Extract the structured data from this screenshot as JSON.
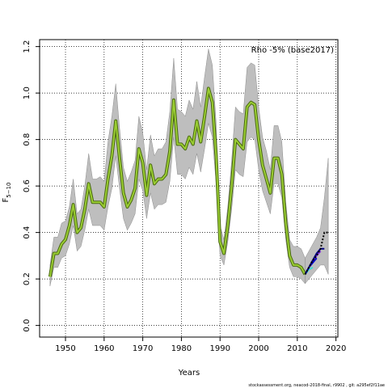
{
  "chart_data": {
    "type": "line",
    "title": "",
    "legend_text": "Rho -5% (base2017)",
    "legend_position": "top-right",
    "xlabel": "Years",
    "ylabel_main": "F",
    "ylabel_sub": "5−10",
    "xlim": [
      1943.3,
      2020.5
    ],
    "ylim": [
      -0.05,
      1.23
    ],
    "xticks": [
      1950,
      1960,
      1970,
      1980,
      1990,
      2000,
      2010,
      2020
    ],
    "yticks": [
      0.0,
      0.2,
      0.4,
      0.6,
      0.8,
      1.0,
      1.2
    ],
    "ytick_labels": [
      "0.0",
      "0.2",
      "0.4",
      "0.6",
      "0.8",
      "1.0",
      "1.2"
    ],
    "grid": true,
    "colors": {
      "band": "#bebebe",
      "band_edge": "#8c8c8c",
      "main_outer": "#4a6a12",
      "main_inner": "#9acd32",
      "retro_1": "#000080",
      "retro_2": "#8a2be2",
      "retro_3": "#0000cd",
      "retro_4": "#40e0d0",
      "retro_5": "#000000"
    },
    "x": [
      1946,
      1947,
      1948,
      1949,
      1950,
      1951,
      1952,
      1953,
      1954,
      1955,
      1956,
      1957,
      1958,
      1959,
      1960,
      1961,
      1962,
      1963,
      1964,
      1965,
      1966,
      1967,
      1968,
      1969,
      1970,
      1971,
      1972,
      1973,
      1974,
      1975,
      1976,
      1977,
      1978,
      1979,
      1980,
      1981,
      1982,
      1983,
      1984,
      1985,
      1986,
      1987,
      1988,
      1989,
      1990,
      1991,
      1992,
      1993,
      1994,
      1995,
      1996,
      1997,
      1998,
      1999,
      2000,
      2001,
      2002,
      2003,
      2004,
      2005,
      2006,
      2007,
      2008,
      2009,
      2010,
      2011,
      2012
    ],
    "series": [
      {
        "values": [
          0.21,
          0.31,
          0.31,
          0.35,
          0.37,
          0.43,
          0.52,
          0.4,
          0.42,
          0.5,
          0.61,
          0.53,
          0.53,
          0.53,
          0.51,
          0.63,
          0.73,
          0.88,
          0.72,
          0.57,
          0.51,
          0.54,
          0.59,
          0.76,
          0.7,
          0.56,
          0.69,
          0.61,
          0.63,
          0.63,
          0.65,
          0.75,
          0.97,
          0.78,
          0.78,
          0.76,
          0.81,
          0.78,
          0.88,
          0.79,
          0.9,
          1.02,
          0.96,
          0.73,
          0.36,
          0.31,
          0.43,
          0.6,
          0.8,
          0.78,
          0.76,
          0.94,
          0.96,
          0.95,
          0.8,
          0.69,
          0.63,
          0.57,
          0.72,
          0.72,
          0.65,
          0.44,
          0.3,
          0.26,
          0.26,
          0.25,
          0.22
        ],
        "upper": [
          0.26,
          0.38,
          0.38,
          0.44,
          0.45,
          0.51,
          0.63,
          0.48,
          0.5,
          0.6,
          0.74,
          0.63,
          0.63,
          0.64,
          0.62,
          0.79,
          0.9,
          1.04,
          0.85,
          0.68,
          0.62,
          0.66,
          0.71,
          0.9,
          0.83,
          0.67,
          0.82,
          0.73,
          0.76,
          0.76,
          0.79,
          0.92,
          1.15,
          0.93,
          0.92,
          0.9,
          0.97,
          0.93,
          1.05,
          0.94,
          1.07,
          1.19,
          1.12,
          0.87,
          0.43,
          0.37,
          0.51,
          0.71,
          0.94,
          0.92,
          0.91,
          1.11,
          1.13,
          1.12,
          0.94,
          0.81,
          0.75,
          0.67,
          0.86,
          0.86,
          0.79,
          0.53,
          0.37,
          0.34,
          0.34,
          0.33,
          0.29
        ],
        "lower": [
          0.17,
          0.25,
          0.25,
          0.29,
          0.3,
          0.35,
          0.43,
          0.32,
          0.34,
          0.41,
          0.5,
          0.43,
          0.43,
          0.43,
          0.41,
          0.51,
          0.59,
          0.73,
          0.59,
          0.46,
          0.41,
          0.44,
          0.48,
          0.63,
          0.58,
          0.46,
          0.57,
          0.5,
          0.52,
          0.52,
          0.53,
          0.62,
          0.81,
          0.65,
          0.65,
          0.63,
          0.68,
          0.65,
          0.74,
          0.66,
          0.76,
          0.87,
          0.81,
          0.61,
          0.3,
          0.26,
          0.36,
          0.5,
          0.67,
          0.65,
          0.64,
          0.79,
          0.81,
          0.8,
          0.67,
          0.58,
          0.53,
          0.48,
          0.61,
          0.61,
          0.55,
          0.37,
          0.25,
          0.21,
          0.21,
          0.2,
          0.18
        ]
      }
    ],
    "retro_x": [
      2012,
      2013,
      2014,
      2015,
      2016,
      2017,
      2018
    ],
    "retro_band_upper": [
      0.29,
      0.32,
      0.35,
      0.38,
      0.42,
      0.55,
      0.72
    ],
    "retro_band_lower": [
      0.18,
      0.2,
      0.22,
      0.24,
      0.26,
      0.26,
      0.22
    ],
    "retro_series": [
      {
        "x": [
          2012,
          2013,
          2014,
          2015,
          2016,
          2017
        ],
        "values": [
          0.22,
          0.25,
          0.28,
          0.31,
          0.33,
          0.33
        ]
      },
      {
        "x": [
          2012,
          2013,
          2014,
          2015,
          2016
        ],
        "values": [
          0.22,
          0.25,
          0.28,
          0.3,
          0.32
        ]
      },
      {
        "x": [
          2012,
          2013,
          2014,
          2015
        ],
        "values": [
          0.22,
          0.25,
          0.27,
          0.29
        ]
      },
      {
        "x": [
          2012,
          2013,
          2014
        ],
        "values": [
          0.22,
          0.24,
          0.25
        ]
      },
      {
        "x": [
          2012,
          2013,
          2014,
          2015,
          2016,
          2017,
          2018
        ],
        "values": [
          0.22,
          0.25,
          0.28,
          0.3,
          0.33,
          0.4,
          0.4
        ]
      }
    ]
  },
  "footer": {
    "text": "stockassessment.org,  neacod-2018-final,  r9902 ,  git:  a295ef2f11ae"
  }
}
